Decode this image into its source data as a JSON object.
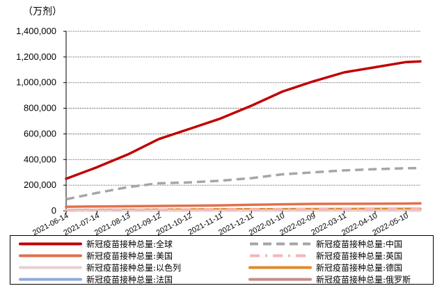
{
  "chart_data": {
    "type": "line",
    "unit_label": "（万剂）",
    "ylim": [
      0,
      1400000
    ],
    "yticks": [
      "1,400,000",
      "1,200,000",
      "1,000,000",
      "800,000",
      "600,000",
      "400,000",
      "200,000",
      "0"
    ],
    "ytick_values": [
      1400000,
      1200000,
      1000000,
      800000,
      600000,
      400000,
      200000,
      0
    ],
    "x_tick_labels": [
      "2021-06-14",
      "2021-07-14",
      "2021-08-13",
      "2021-09-12",
      "2021-10-12",
      "2021-11-11",
      "2021-12-11",
      "2022-01-10",
      "2022-02-09",
      "2022-03-11",
      "2022-04-10",
      "2022-05-10"
    ],
    "x_start": "2021-06-14",
    "x_end": "2022-05-24",
    "grid": "horizontal-dotted",
    "legend_position": "bottom",
    "series": [
      {
        "name": "新冠疫苗接种总量:全球",
        "color": "#C00000",
        "style": "solid",
        "width": 3.5,
        "x": [
          "2021-06-14",
          "2021-07-14",
          "2021-08-13",
          "2021-09-12",
          "2021-10-12",
          "2021-11-11",
          "2021-12-11",
          "2022-01-10",
          "2022-02-09",
          "2022-03-11",
          "2022-04-10",
          "2022-05-10",
          "2022-05-24"
        ],
        "values": [
          250000,
          340000,
          440000,
          560000,
          640000,
          720000,
          820000,
          930000,
          1010000,
          1080000,
          1120000,
          1160000,
          1165000
        ]
      },
      {
        "name": "新冠疫苗接种总量:中国",
        "color": "#A6A6A6",
        "style": "dash",
        "width": 3.5,
        "x": [
          "2021-06-14",
          "2021-07-14",
          "2021-08-13",
          "2021-09-12",
          "2021-10-12",
          "2021-11-11",
          "2021-12-11",
          "2022-01-10",
          "2022-02-09",
          "2022-03-11",
          "2022-04-10",
          "2022-05-10",
          "2022-05-24"
        ],
        "values": [
          90000,
          140000,
          185000,
          215000,
          222000,
          235000,
          255000,
          285000,
          300000,
          315000,
          325000,
          332000,
          333000
        ]
      },
      {
        "name": "新冠疫苗接种总量:美国",
        "color": "#E0704D",
        "style": "solid",
        "width": 3.5,
        "x": [
          "2021-06-14",
          "2021-07-14",
          "2021-08-13",
          "2021-09-12",
          "2021-10-12",
          "2021-11-11",
          "2021-12-11",
          "2022-01-10",
          "2022-02-09",
          "2022-03-11",
          "2022-04-10",
          "2022-05-10",
          "2022-05-24"
        ],
        "values": [
          32000,
          34000,
          36000,
          38000,
          40000,
          43000,
          47000,
          51000,
          54000,
          55000,
          56000,
          57000,
          58000
        ]
      },
      {
        "name": "新冠疫苗接种总量:英国",
        "color": "#F4B6B6",
        "style": "dashdot",
        "width": 3.5,
        "x": [
          "2021-06-14",
          "2021-12-11",
          "2022-05-24"
        ],
        "values": [
          7000,
          11000,
          14000
        ]
      },
      {
        "name": "新冠疫苗接种总量:以色列",
        "color": "#E8D0D0",
        "style": "solid",
        "width": 3.5,
        "x": [
          "2021-06-14",
          "2021-12-11",
          "2022-05-24"
        ],
        "values": [
          1000,
          1600,
          1800
        ]
      },
      {
        "name": "新冠疫苗接种总量:德国",
        "color": "#E08A2C",
        "style": "solid",
        "width": 3,
        "x": [
          "2021-06-14",
          "2021-12-11",
          "2022-05-24"
        ],
        "values": [
          7000,
          14000,
          18000
        ]
      },
      {
        "name": "新冠疫苗接种总量:法国",
        "color": "#8EA9DB",
        "style": "solid",
        "width": 3,
        "x": [
          "2021-06-14",
          "2021-12-11",
          "2022-05-24"
        ],
        "values": [
          4000,
          10000,
          14000
        ]
      },
      {
        "name": "新冠疫苗接种总量:俄罗斯",
        "color": "#C88A8A",
        "style": "solid",
        "width": 3,
        "x": [
          "2021-06-14",
          "2021-12-11",
          "2022-05-24"
        ],
        "values": [
          3000,
          10000,
          16000
        ]
      }
    ]
  }
}
